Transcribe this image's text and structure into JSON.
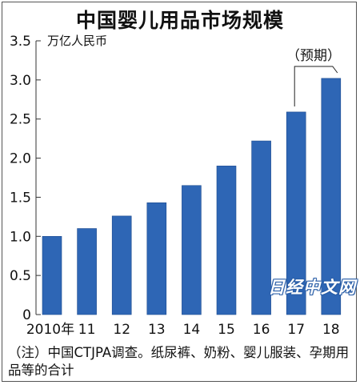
{
  "title": "中国婴儿用品市场规模",
  "unit_label": "万亿人民币",
  "forecast_label": "（预期）",
  "note": "（注）中国CTJPA调查。纸尿裤、奶粉、婴儿服装、孕期用品等的合计",
  "watermark": "日经中文网",
  "colors": {
    "bar": "#2e66b5",
    "bar_edge": "#1c4a8e",
    "axis": "#333333"
  },
  "chart_data": {
    "type": "bar",
    "title": "中国婴儿用品市场规模",
    "ylabel": "万亿人民币",
    "xlabel": "",
    "categories": [
      "2010年",
      "11",
      "12",
      "13",
      "14",
      "15",
      "16",
      "17",
      "18"
    ],
    "values": [
      1.0,
      1.1,
      1.26,
      1.43,
      1.65,
      1.9,
      2.22,
      2.59,
      3.02
    ],
    "ylim": [
      0,
      3.5
    ],
    "yticks": [
      "0",
      "0.5",
      "1.0",
      "1.5",
      "2.0",
      "2.5",
      "3.0",
      "3.5"
    ],
    "forecast_categories": [
      "17",
      "18"
    ],
    "grid": false,
    "legend": "none"
  }
}
